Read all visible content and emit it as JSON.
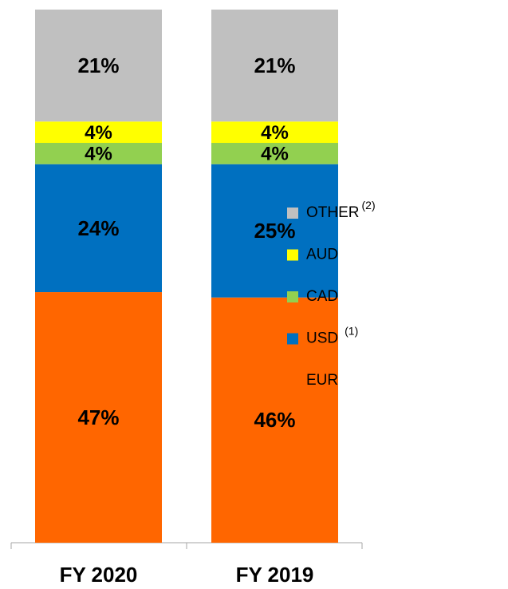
{
  "chart_data": {
    "type": "stacked_bar",
    "categories": [
      "FY 2020",
      "FY 2019"
    ],
    "ylim": [
      0,
      100
    ],
    "series": [
      {
        "name": "EUR",
        "color": "#ff6600",
        "values": [
          47,
          46
        ],
        "value_labels": [
          "47%",
          "46%"
        ]
      },
      {
        "name": "USD",
        "note": "(1)",
        "color": "#0070c0",
        "values": [
          24,
          25
        ],
        "value_labels": [
          "24%",
          "25%"
        ]
      },
      {
        "name": "CAD",
        "color": "#92d050",
        "values": [
          4,
          4
        ],
        "value_labels": [
          "4%",
          "4%"
        ]
      },
      {
        "name": "AUD",
        "color": "#ffff00",
        "values": [
          4,
          4
        ],
        "value_labels": [
          "4%",
          "4%"
        ]
      },
      {
        "name": "OTHER",
        "note": "(2)",
        "color": "#c0c0c0",
        "values": [
          21,
          21
        ],
        "value_labels": [
          "21%",
          "21%"
        ]
      }
    ]
  }
}
